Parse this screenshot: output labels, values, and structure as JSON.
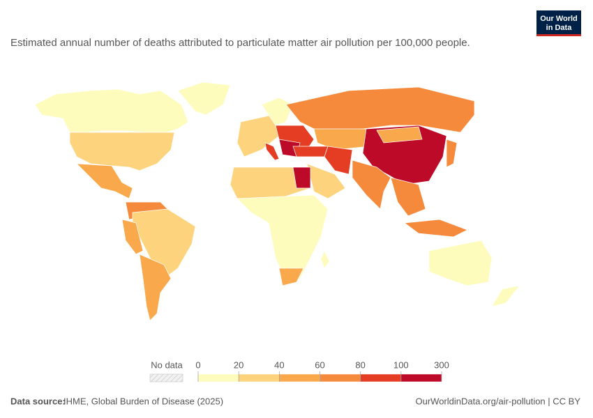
{
  "header": {
    "subtitle": "Estimated annual number of deaths attributed to particulate matter air pollution per 100,000 people.",
    "logo": [
      "Our World",
      "in Data"
    ]
  },
  "legend": {
    "no_data_label": "No data",
    "ticks": [
      0,
      20,
      40,
      60,
      80,
      100,
      300
    ],
    "colors": [
      "#fefcbc",
      "#fdd47d",
      "#f9a94c",
      "#f58a3d",
      "#e43d24",
      "#bd0a28"
    ]
  },
  "footer": {
    "source_label": "Data source:",
    "source": "IHME, Global Burden of Disease (2025)",
    "url_license": "OurWorldinData.org/air-pollution | CC BY"
  }
}
